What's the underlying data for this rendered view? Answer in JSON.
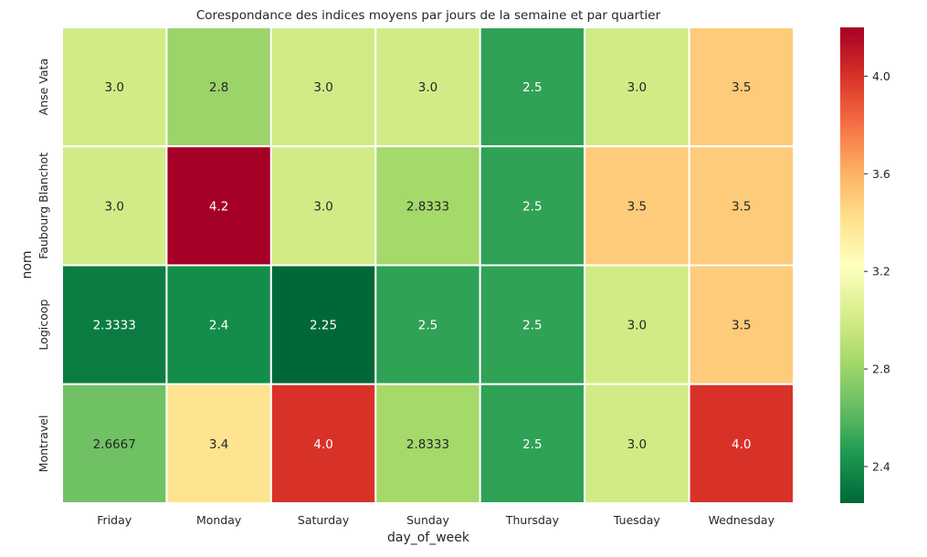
{
  "chart_data": {
    "type": "heatmap",
    "title": "Corespondance des indices moyens par jours de la semaine et par quartier",
    "xlabel": "day_of_week",
    "ylabel": "nom",
    "x_categories": [
      "Friday",
      "Monday",
      "Saturday",
      "Sunday",
      "Thursday",
      "Tuesday",
      "Wednesday"
    ],
    "y_categories": [
      "Anse Vata",
      "Faubourg Blanchot",
      "Logicoop",
      "Montravel"
    ],
    "values": [
      [
        3.0,
        2.8,
        3.0,
        3.0,
        2.5,
        3.0,
        3.5
      ],
      [
        3.0,
        4.2,
        3.0,
        2.8333,
        2.5,
        3.5,
        3.5
      ],
      [
        2.3333,
        2.4,
        2.25,
        2.5,
        2.5,
        3.0,
        3.5
      ],
      [
        2.6667,
        3.4,
        4.0,
        2.8333,
        2.5,
        3.0,
        4.0
      ]
    ],
    "cell_labels": [
      [
        "3.0",
        "2.8",
        "3.0",
        "3.0",
        "2.5",
        "3.0",
        "3.5"
      ],
      [
        "3.0",
        "4.2",
        "3.0",
        "2.8333",
        "2.5",
        "3.5",
        "3.5"
      ],
      [
        "2.3333",
        "2.4",
        "2.25",
        "2.5",
        "2.5",
        "3.0",
        "3.5"
      ],
      [
        "2.6667",
        "3.4",
        "4.0",
        "2.8333",
        "2.5",
        "3.0",
        "4.0"
      ]
    ],
    "colormap": "RdYlGn_r",
    "vmin": 2.25,
    "vmax": 4.2,
    "colorbar": {
      "ticks": [
        2.4,
        2.8,
        3.2,
        3.6,
        4.0
      ],
      "tick_labels": [
        "2.4",
        "2.8",
        "3.2",
        "3.6",
        "4.0"
      ]
    },
    "grid": false,
    "cell_border_color": "#ffffff"
  }
}
